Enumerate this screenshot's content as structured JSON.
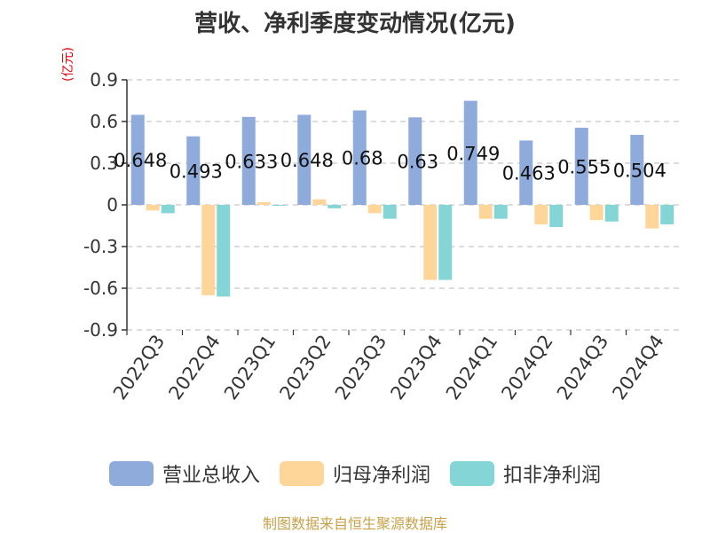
{
  "title": "营收、净利季度变动情况(亿元)",
  "unit_label": "(亿元)",
  "source": "制图数据来自恒生聚源数据库",
  "colors": {
    "revenue": "#8eabdc",
    "net_profit": "#ffd699",
    "deducted_profit": "#84d5d6"
  },
  "chart_data": {
    "type": "bar",
    "title": "营收、净利季度变动情况(亿元)",
    "ylabel": "(亿元)",
    "ylim": [
      -0.9,
      0.9
    ],
    "yticks": [
      0.9,
      0.6,
      0.3,
      0,
      -0.3,
      -0.6,
      -0.9
    ],
    "ytick_labels": [
      "0.9",
      "0.6",
      "0.3",
      "0",
      "-0.3",
      "-0.6",
      "-0.9"
    ],
    "grid": true,
    "legend_position": "bottom",
    "categories": [
      "2022Q3",
      "2022Q4",
      "2023Q1",
      "2023Q2",
      "2023Q3",
      "2023Q4",
      "2024Q1",
      "2024Q2",
      "2024Q3",
      "2024Q4"
    ],
    "series": [
      {
        "name": "营业总收入",
        "values": [
          0.648,
          0.493,
          0.633,
          0.648,
          0.68,
          0.63,
          0.749,
          0.463,
          0.555,
          0.504
        ],
        "data_labels": [
          "0.648",
          "0.493",
          "0.633",
          "0.648",
          "0.68",
          "0.63",
          "0.749",
          "0.463",
          "0.555",
          "0.504"
        ]
      },
      {
        "name": "归母净利润",
        "values": [
          -0.04,
          -0.65,
          0.02,
          0.04,
          -0.06,
          -0.54,
          -0.1,
          -0.14,
          -0.11,
          -0.17
        ]
      },
      {
        "name": "扣非净利润",
        "values": [
          -0.06,
          -0.66,
          -0.005,
          -0.025,
          -0.1,
          -0.54,
          -0.1,
          -0.16,
          -0.12,
          -0.14
        ]
      }
    ]
  }
}
